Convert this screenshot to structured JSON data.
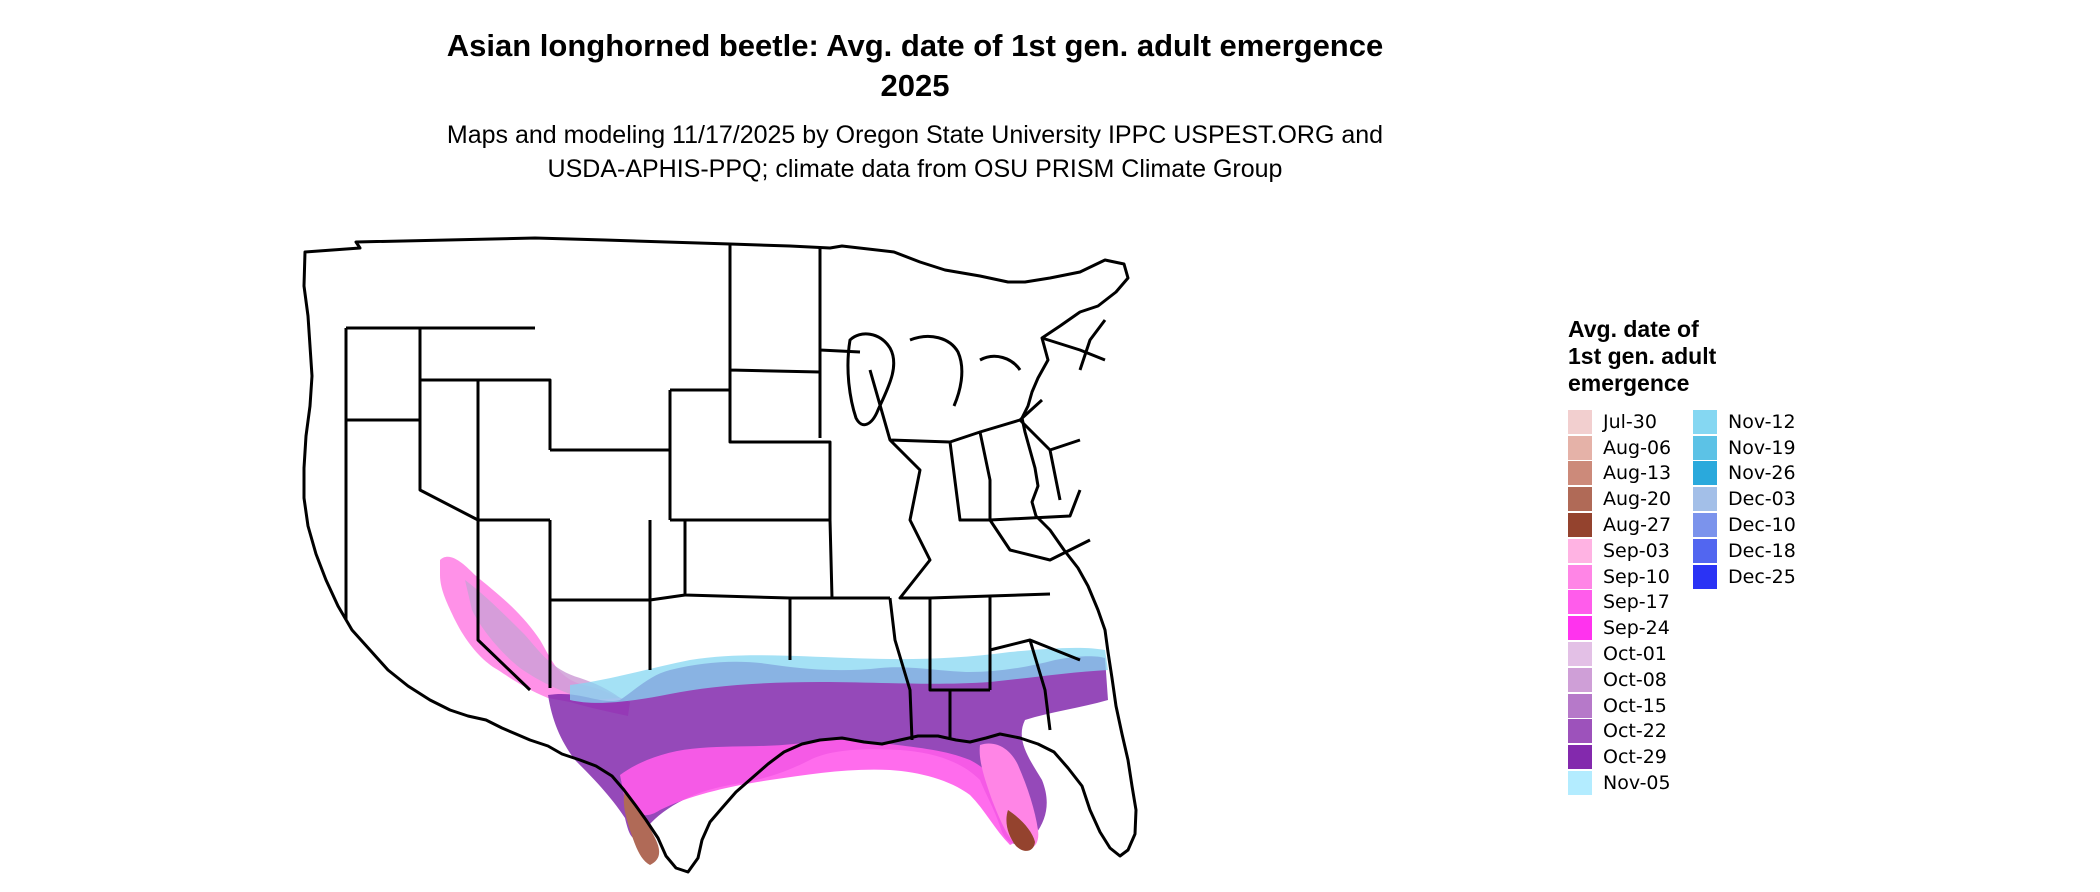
{
  "title": "Asian longhorned beetle: Avg. date of 1st gen. adult emergence",
  "year": "2025",
  "subtitle_line1": "Maps and modeling 11/17/2025 by Oregon State University IPPC USPEST.ORG and",
  "subtitle_line2": "USDA-APHIS-PPQ; climate data from OSU PRISM Climate Group",
  "legend": {
    "title_line1": "Avg. date of",
    "title_line2": "1st gen. adult",
    "title_line3": "emergence",
    "items": [
      {
        "label": "Jul-30",
        "color": "#f2cfcf"
      },
      {
        "label": "Aug-06",
        "color": "#e5b2a8"
      },
      {
        "label": "Aug-13",
        "color": "#cc8a7a"
      },
      {
        "label": "Aug-20",
        "color": "#b06a57"
      },
      {
        "label": "Aug-27",
        "color": "#94432e"
      },
      {
        "label": "Sep-03",
        "color": "#ffb3e3"
      },
      {
        "label": "Sep-10",
        "color": "#ff85e6"
      },
      {
        "label": "Sep-17",
        "color": "#ff5ceb"
      },
      {
        "label": "Sep-24",
        "color": "#ff33ee"
      },
      {
        "label": "Oct-01",
        "color": "#e3c0e6"
      },
      {
        "label": "Oct-08",
        "color": "#cf9fd7"
      },
      {
        "label": "Oct-15",
        "color": "#b679c9"
      },
      {
        "label": "Oct-22",
        "color": "#9d52bb"
      },
      {
        "label": "Oct-29",
        "color": "#8329ad"
      },
      {
        "label": "Nov-05",
        "color": "#b3ecff"
      },
      {
        "label": "Nov-12",
        "color": "#85d7f2"
      },
      {
        "label": "Nov-19",
        "color": "#5cc2e6"
      },
      {
        "label": "Nov-26",
        "color": "#2aa9dc"
      },
      {
        "label": "Dec-03",
        "color": "#a3bfe8"
      },
      {
        "label": "Dec-10",
        "color": "#7b93ec"
      },
      {
        "label": "Dec-18",
        "color": "#5266f0"
      },
      {
        "label": "Dec-25",
        "color": "#2a33f5"
      }
    ]
  }
}
